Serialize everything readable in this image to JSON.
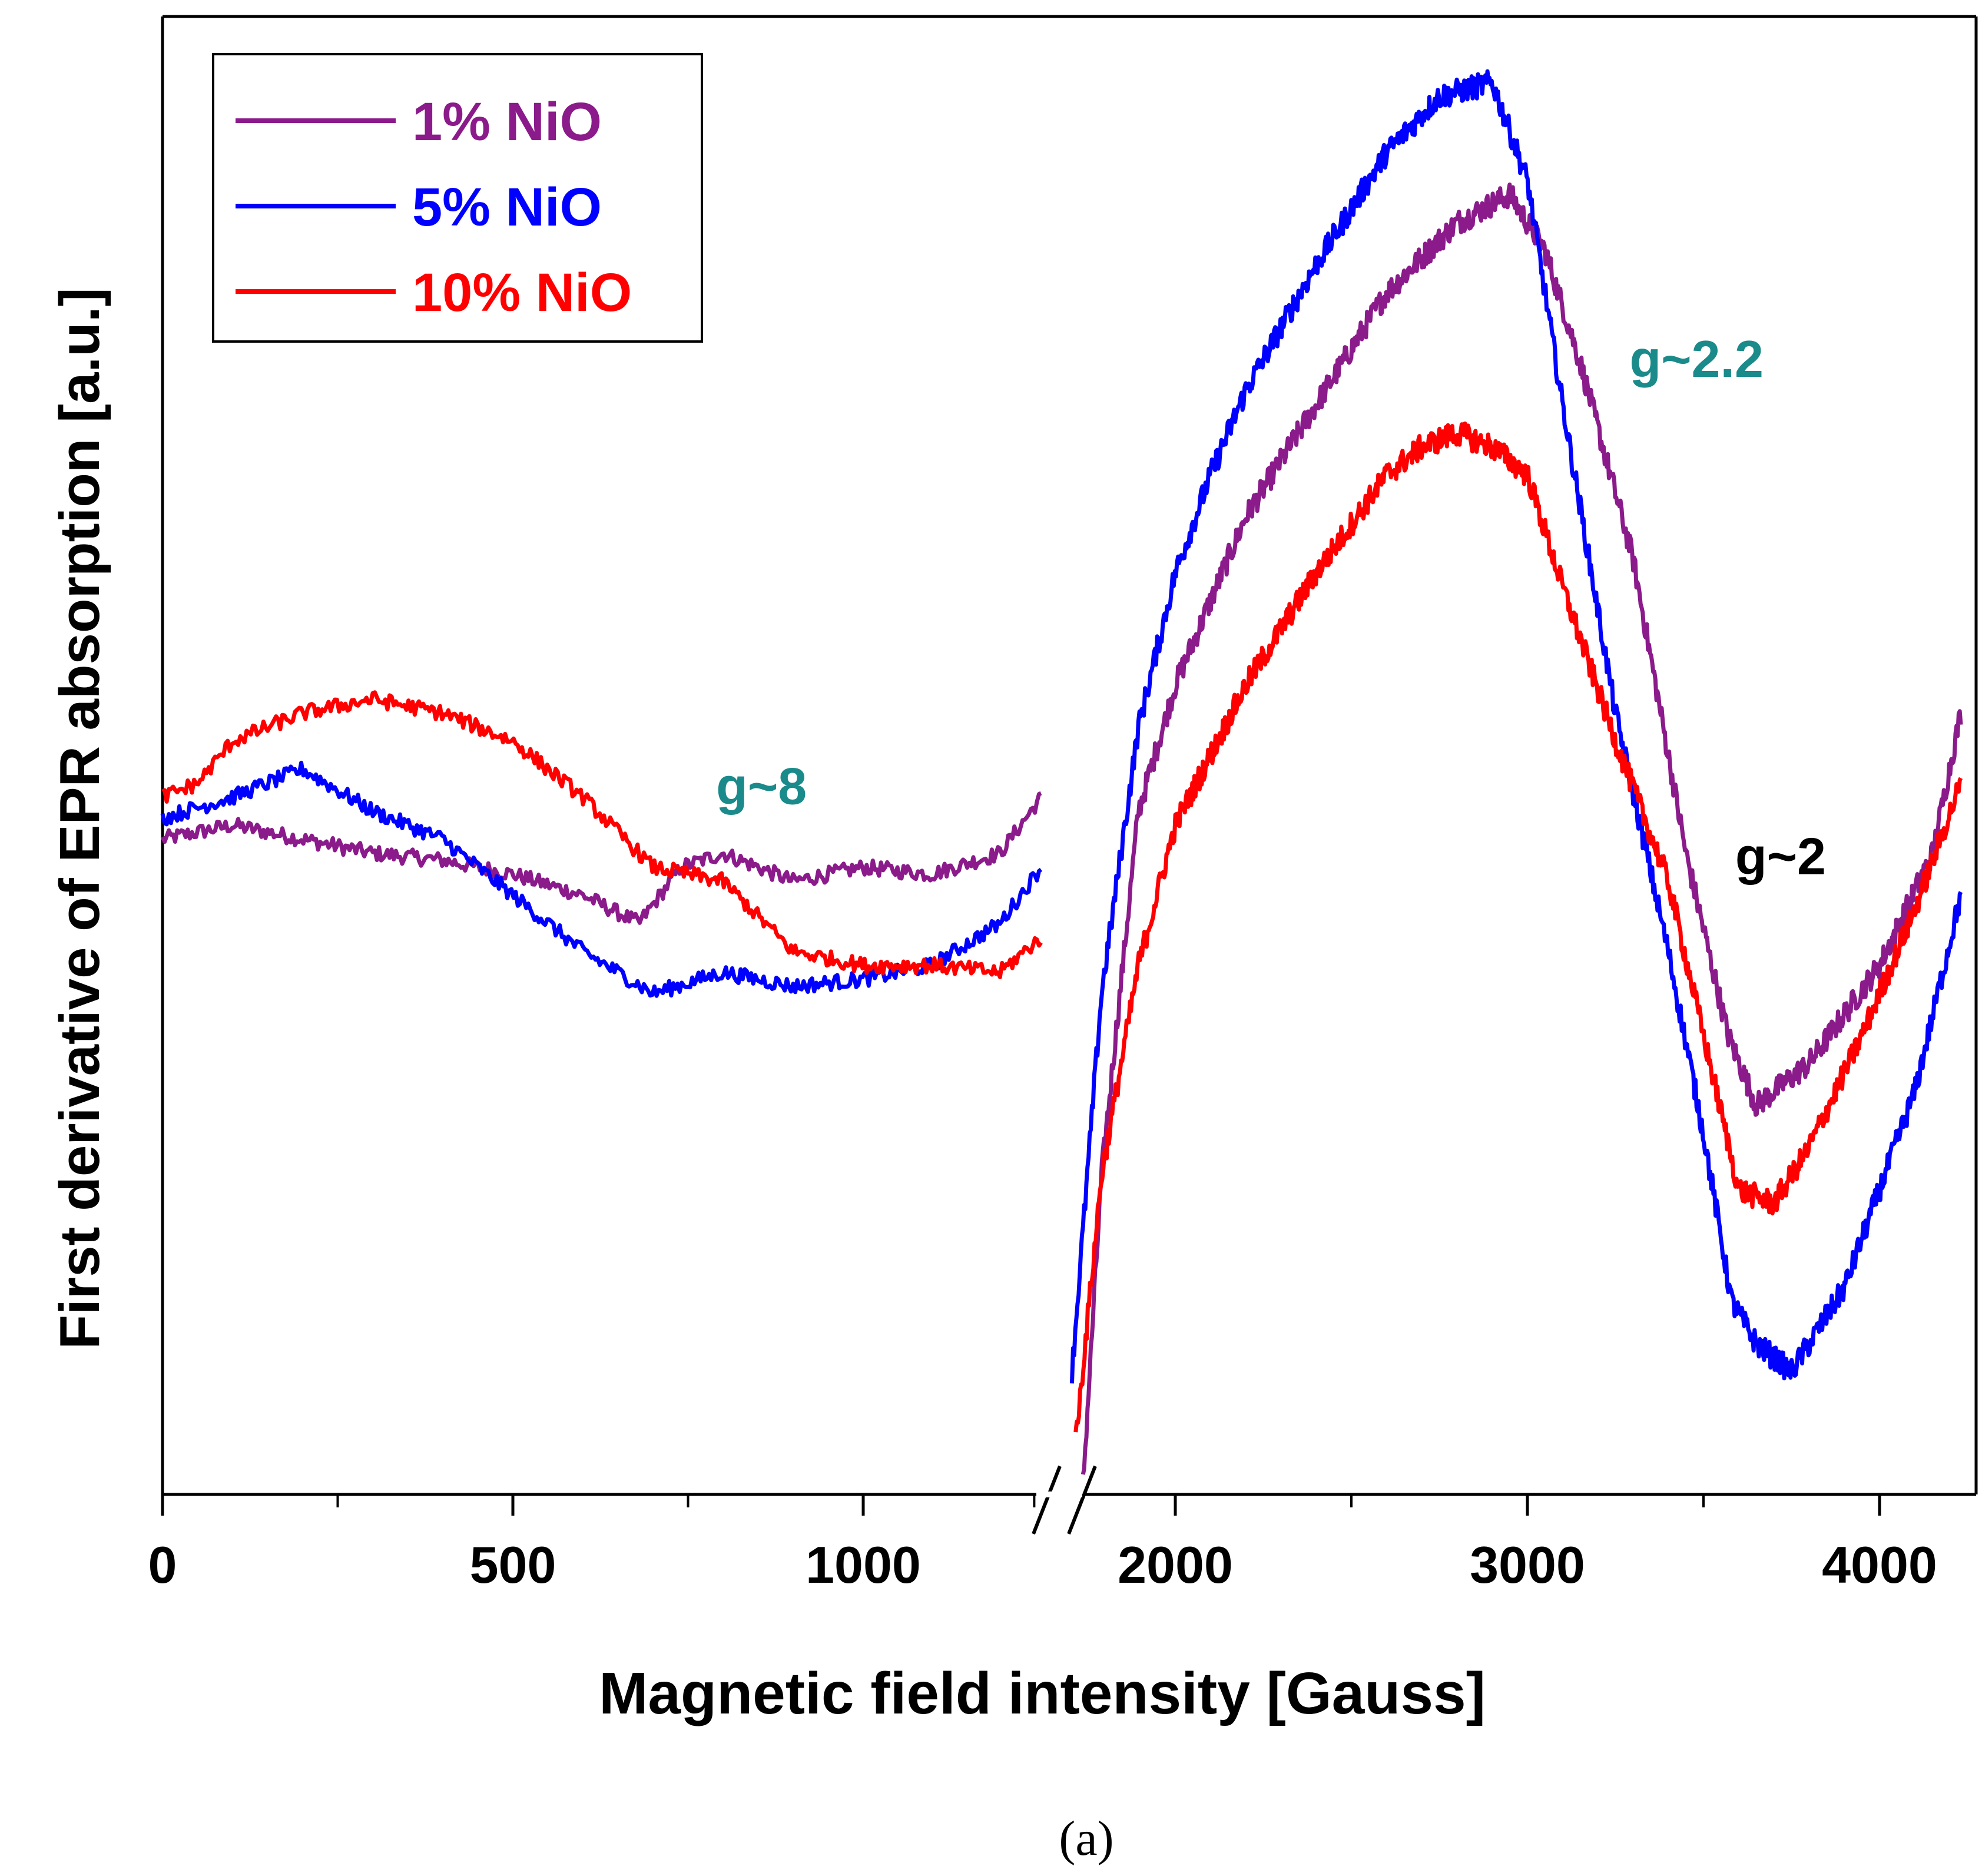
{
  "chart_data": {
    "type": "line",
    "title": "",
    "xlabel": "Magnetic field intensity [Gauss]",
    "ylabel": "First derivative of EPR absorption [a.u.]",
    "caption": "(a)",
    "xlim": [
      0,
      4250
    ],
    "ylim": [
      0,
      100
    ],
    "y_ticks_shown": false,
    "axis_break_label": "//",
    "grid": false,
    "legend_position": "top-left",
    "x_ticks": [
      {
        "value": 0,
        "label": "0"
      },
      {
        "value": 500,
        "label": "500"
      },
      {
        "value": 1000,
        "label": "1000"
      },
      {
        "value": 2000,
        "label": "2000"
      },
      {
        "value": 3000,
        "label": "3000"
      },
      {
        "value": 4000,
        "label": "4000"
      }
    ],
    "x_minor_ticks": [
      250,
      750,
      1250,
      2500,
      3500
    ],
    "colors": {
      "s1": "#8b1a8b",
      "s5": "#0000ff",
      "s10": "#ff0000",
      "annot_teal": "#1a8a8a",
      "annot_black": "#000000"
    },
    "series": [
      {
        "name": "1% NiO",
        "color": "#8b1a8b",
        "segments": [
          {
            "x": [
              0,
              100,
              200,
              300,
              400,
              500,
              600,
              680,
              740,
              800,
              900,
              1000,
              1100,
              1200,
              1260
            ],
            "y": [
              46,
              47,
              46,
              45,
              44.5,
              43.5,
              42,
              40,
              44,
              45,
              43,
              44,
              43.5,
              45,
              49
            ]
          },
          {
            "x": [
              1750,
              1800,
              1900,
              2000,
              2100,
              2200,
              2400,
              2600,
              2800,
              2950,
              3050,
              3150,
              3300,
              3450,
              3570,
              3650,
              3800,
              4000,
              4150,
              4230
            ],
            "y": [
              0,
              22,
              48,
              57,
              63,
              69,
              77,
              85,
              90,
              92,
              88,
              80,
              66,
              45,
              32,
              27,
              30,
              37,
              45,
              55
            ]
          }
        ]
      },
      {
        "name": "5% NiO",
        "color": "#0000ff",
        "segments": [
          {
            "x": [
              0,
              100,
              200,
              300,
              400,
              500,
              600,
              700,
              800,
              900,
              1000,
              1100,
              1200,
              1260
            ],
            "y": [
              47.5,
              49,
              51,
              48,
              46,
              42,
              38,
              35,
              36.5,
              35.5,
              36,
              37,
              40,
              44
            ]
          },
          {
            "x": [
              1720,
              1800,
              1900,
              2000,
              2100,
              2200,
              2400,
              2600,
              2750,
              2900,
              3000,
              3100,
              3250,
              3400,
              3500,
              3580,
              3650,
              3750,
              3900,
              4100,
              4230
            ],
            "y": [
              8,
              35,
              54,
              65,
              72,
              78,
              87,
              95,
              99,
              100,
              93,
              77,
              55,
              38,
              25,
              13,
              10,
              8,
              14,
              28,
              42
            ]
          }
        ]
      },
      {
        "name": "10% NiO",
        "color": "#ff0000",
        "segments": [
          {
            "x": [
              0,
              50,
              100,
              200,
              300,
              400,
              500,
              600,
              700,
              800,
              900,
              1000,
              1100,
              1200,
              1260
            ],
            "y": [
              49,
              50,
              53,
              55,
              56,
              55,
              53,
              49,
              44,
              43,
              38,
              37,
              37,
              36.5,
              39
            ]
          },
          {
            "x": [
              1730,
              1800,
              1900,
              2000,
              2200,
              2400,
              2600,
              2700,
              2800,
              2900,
              3000,
              3100,
              3250,
              3400,
              3500,
              3600,
              3700,
              3800,
              3950,
              4100,
              4230
            ],
            "y": [
              3,
              22,
              37,
              47,
              57,
              65,
              72,
              74,
              75,
              74,
              72,
              64,
              53,
              43,
              32,
              21,
              20,
              24,
              32,
              41,
              50
            ]
          }
        ]
      }
    ],
    "annotations": [
      {
        "text": "g~8",
        "x": 790,
        "y": 48.5,
        "color": "#1a8a8a"
      },
      {
        "text": "g~2.2",
        "x": 3290,
        "y": 79,
        "color": "#1a8a8a"
      },
      {
        "text": "g~2",
        "x": 3590,
        "y": 43.5,
        "color": "#000000"
      }
    ]
  }
}
